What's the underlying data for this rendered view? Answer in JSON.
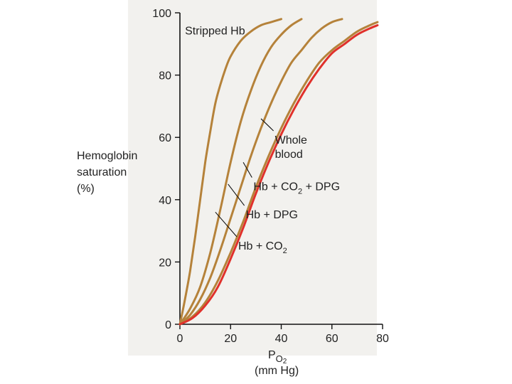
{
  "chart_data": {
    "type": "line",
    "ylabel_lines": [
      "Hemoglobin",
      "saturation",
      "(%)"
    ],
    "xlabel": {
      "main": "P",
      "subscript": "O",
      "subsubscript": "2"
    },
    "xunit": "(mm Hg)",
    "xlim": [
      0,
      80
    ],
    "ylim": [
      0,
      100
    ],
    "xticks": [
      "0",
      "20",
      "40",
      "60",
      "80"
    ],
    "yticks": [
      "0",
      "20",
      "40",
      "60",
      "80",
      "100"
    ],
    "grid": false,
    "series": [
      {
        "name": "Stripped Hb",
        "color": "#b5823a",
        "x": [
          0,
          2,
          4,
          6,
          8,
          10,
          12,
          14,
          16,
          18,
          20,
          24,
          28,
          32,
          36,
          40
        ],
        "y": [
          0,
          8,
          17,
          28,
          40,
          52,
          62,
          71,
          77,
          82,
          86,
          91,
          94,
          96,
          97,
          98
        ]
      },
      {
        "name": "Hb + CO2",
        "label_parts": [
          "Hb + CO",
          "2"
        ],
        "color": "#b5823a",
        "x": [
          0,
          4,
          8,
          12,
          16,
          20,
          24,
          28,
          32,
          36,
          40,
          44,
          48
        ],
        "y": [
          0,
          5,
          12,
          23,
          37,
          52,
          65,
          75,
          83,
          89,
          93,
          96,
          98
        ]
      },
      {
        "name": "Hb + DPG",
        "color": "#b5823a",
        "x": [
          0,
          4,
          8,
          12,
          16,
          20,
          24,
          28,
          32,
          36,
          40,
          44,
          48,
          52,
          56,
          60,
          64
        ],
        "y": [
          0,
          3,
          8,
          15,
          24,
          34,
          44,
          54,
          63,
          71,
          78,
          84,
          88,
          92,
          95,
          97,
          98
        ]
      },
      {
        "name": "Hb + CO2 + DPG",
        "label_parts": [
          "Hb + CO",
          "2",
          " + DPG"
        ],
        "color": "#b5823a",
        "x": [
          0,
          5,
          10,
          15,
          20,
          25,
          30,
          35,
          40,
          45,
          50,
          55,
          60,
          65,
          70,
          75,
          78
        ],
        "y": [
          0,
          2.5,
          7,
          14,
          23,
          33,
          44,
          54,
          63,
          71,
          78,
          84,
          88,
          91,
          94,
          96,
          97
        ]
      },
      {
        "name": "Whole blood",
        "label_lines": [
          "Whole",
          "blood"
        ],
        "color": "#e0312b",
        "x": [
          0,
          5,
          10,
          15,
          20,
          25,
          30,
          35,
          40,
          45,
          50,
          55,
          60,
          65,
          70,
          75,
          78
        ],
        "y": [
          0,
          2,
          6,
          12,
          21,
          31,
          42,
          52,
          61,
          69,
          76,
          82,
          87,
          90,
          93,
          95,
          96
        ]
      }
    ],
    "annotations": [
      {
        "series": "Stripped Hb",
        "text": "Stripped Hb",
        "label_at": [
          2,
          93
        ],
        "point": [
          16,
          88
        ]
      },
      {
        "series": "Whole blood",
        "text": "Whole blood",
        "label_at": [
          37.5,
          58
        ],
        "point": [
          32,
          66
        ]
      },
      {
        "series": "Hb + CO2 + DPG",
        "text": "Hb + CO2 + DPG",
        "label_at": [
          29,
          43
        ],
        "point": [
          25,
          52
        ]
      },
      {
        "series": "Hb + DPG",
        "text": "Hb + DPG",
        "label_at": [
          26,
          34
        ],
        "point": [
          19,
          45
        ]
      },
      {
        "series": "Hb + CO2",
        "text": "Hb + CO2",
        "label_at": [
          23,
          24
        ],
        "point": [
          14,
          36
        ]
      }
    ]
  }
}
